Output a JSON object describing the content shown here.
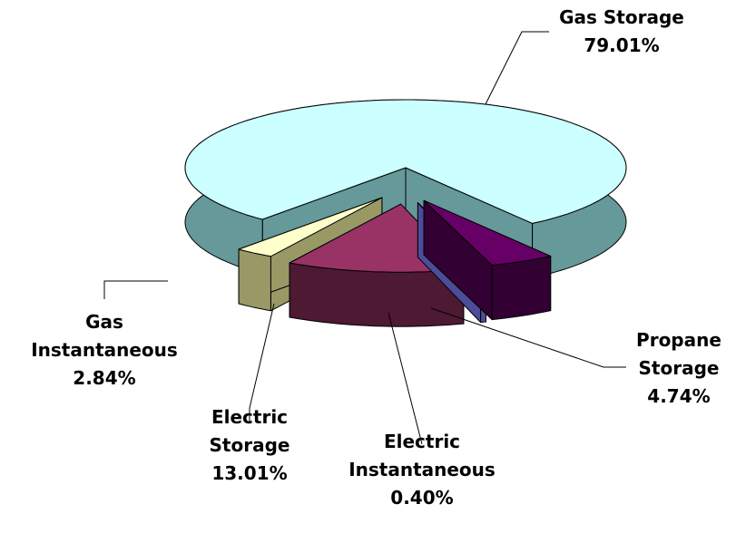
{
  "chart_data": {
    "type": "pie3d",
    "categories": [
      "Gas Storage",
      "Propane Storage",
      "Electric Instantaneous",
      "Electric Storage",
      "Gas Instantaneous"
    ],
    "values": [
      79.01,
      4.74,
      0.4,
      13.01,
      2.84
    ],
    "value_labels": [
      "79.01%",
      "4.74%",
      "0.40%",
      "13.01%",
      "2.84%"
    ],
    "colors": [
      "#ccffff",
      "#660066",
      "#9999ff",
      "#993366",
      "#ffffcc"
    ],
    "side_colors": [
      "#669999",
      "#330033",
      "#4c4c99",
      "#4d1933",
      "#999966"
    ]
  }
}
